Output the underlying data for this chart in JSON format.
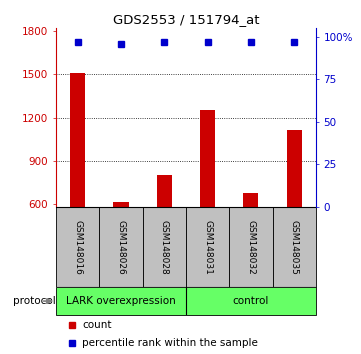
{
  "title": "GDS2553 / 151794_at",
  "samples": [
    "GSM148016",
    "GSM148026",
    "GSM148028",
    "GSM148031",
    "GSM148032",
    "GSM148035"
  ],
  "counts": [
    1510,
    618,
    800,
    1255,
    680,
    1115
  ],
  "percentile_ranks": [
    97,
    96,
    97,
    97,
    97,
    97
  ],
  "ylim_left": [
    580,
    1820
  ],
  "yticks_left": [
    600,
    900,
    1200,
    1500,
    1800
  ],
  "ylim_right": [
    0,
    105
  ],
  "yticks_right": [
    0,
    25,
    50,
    75,
    100
  ],
  "yticklabels_right": [
    "0",
    "25",
    "50",
    "75",
    "100%"
  ],
  "bar_color": "#CC0000",
  "dot_color": "#0000CC",
  "bg_color_green": "#66FF66",
  "tick_label_color_left": "#CC0000",
  "tick_label_color_right": "#0000CC",
  "sample_bg_color": "#C0C0C0",
  "lark_label": "LARK overexpression",
  "control_label": "control",
  "legend_count_label": "count",
  "legend_pct_label": "percentile rank within the sample",
  "protocol_label": "protocol"
}
